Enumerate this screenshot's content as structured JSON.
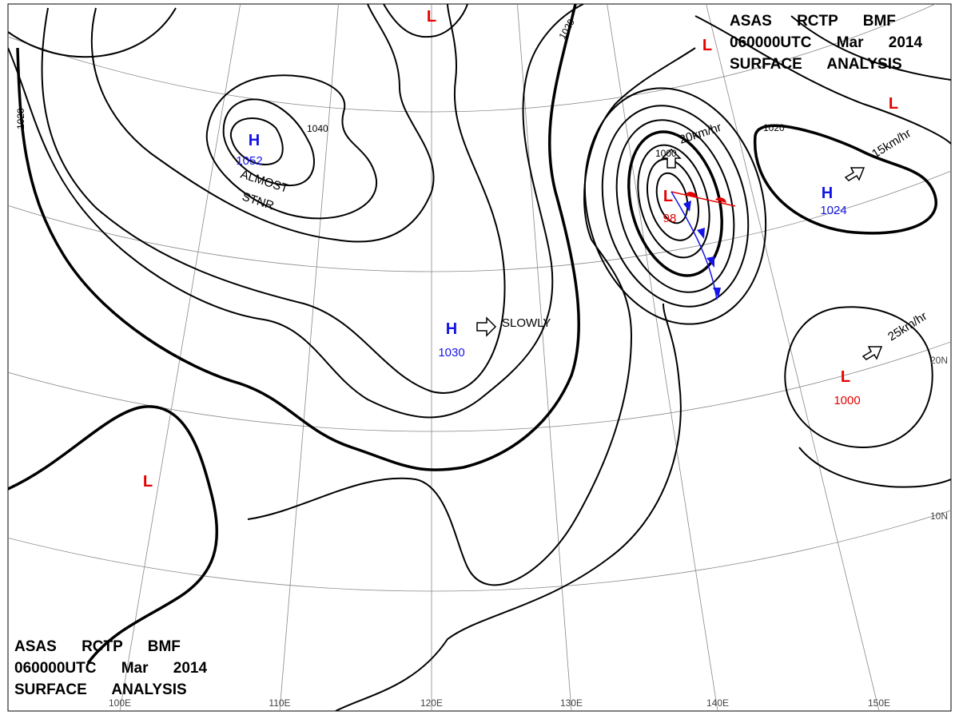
{
  "title_blocks": [
    [
      "ASAS RCTP BMF",
      "060000UTC Mar 2014",
      "SURFACE ANALYSIS"
    ],
    [
      "ASAS RCTP BMF",
      "060000UTC Mar 2014",
      "SURFACE ANALYSIS"
    ]
  ],
  "colors": {
    "H": "#1414e6",
    "L": "#e60000"
  },
  "pressure_centers": [
    {
      "type": "H",
      "value": 1052
    },
    {
      "type": "H",
      "value": 1030
    },
    {
      "type": "H",
      "value": 1024
    },
    {
      "type": "L",
      "value": 98
    },
    {
      "type": "L",
      "value": 1000
    },
    {
      "type": "L"
    },
    {
      "type": "L"
    },
    {
      "type": "L"
    },
    {
      "type": "L"
    }
  ],
  "isobar_labels": [
    1020,
    1040,
    1020,
    1000,
    1020
  ],
  "motions": [
    "ALMOST",
    "STNR",
    "SLOWLY",
    "20km/hr",
    "15km/hr",
    "25km/hr"
  ],
  "longitudes": [
    "100E",
    "110E",
    "120E",
    "130E",
    "140E",
    "150E"
  ],
  "latitudes": [
    "20N",
    "10N"
  ]
}
